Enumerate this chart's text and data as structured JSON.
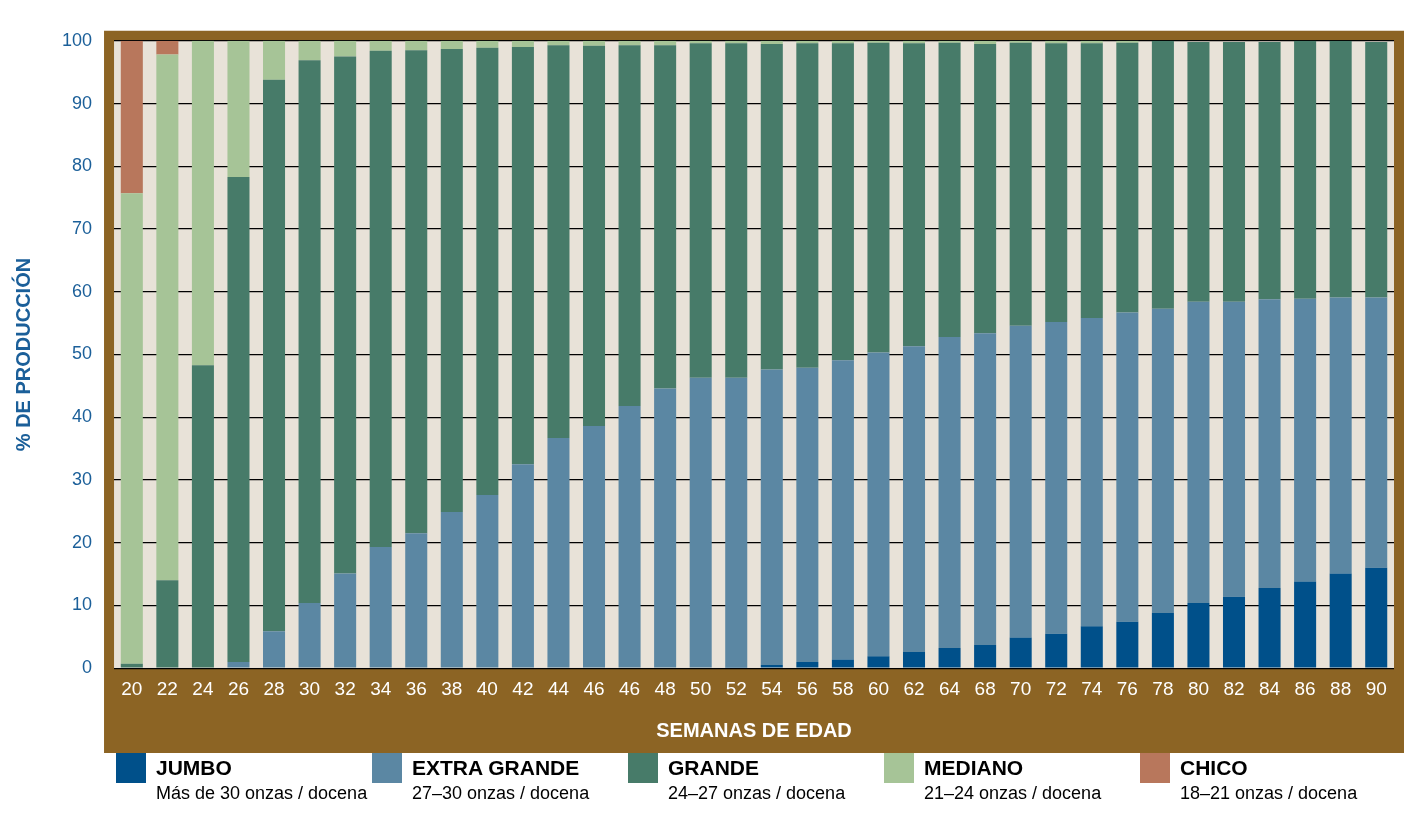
{
  "chart_data": {
    "type": "bar",
    "stacked": true,
    "xlabel": "SEMANAS DE EDAD",
    "ylabel": "% DE PRODUCCIÓN",
    "categories": [
      "20",
      "22",
      "24",
      "26",
      "28",
      "30",
      "32",
      "34",
      "36",
      "38",
      "40",
      "42",
      "44",
      "46",
      "46",
      "48",
      "50",
      "52",
      "54",
      "56",
      "58",
      "60",
      "62",
      "64",
      "68",
      "70",
      "72",
      "74",
      "76",
      "78",
      "80",
      "82",
      "84",
      "86",
      "88",
      "90"
    ],
    "series": [
      {
        "name": "JUMBO",
        "color": "#00508a",
        "values": [
          0,
          0,
          0,
          0,
          0,
          0,
          0,
          0,
          0,
          0,
          0,
          0,
          0,
          0,
          0,
          0,
          0,
          0.2,
          0.5,
          1.0,
          1.4,
          1.9,
          2.6,
          3.2,
          3.7,
          4.9,
          5.5,
          6.7,
          7.4,
          8.8,
          10.4,
          11.4,
          12.8,
          13.8,
          15.1,
          16.0
        ]
      },
      {
        "name": "EXTRA GRANDE",
        "color": "#5b87a3",
        "values": [
          0,
          0,
          0,
          1.0,
          5.9,
          10.4,
          15.1,
          19.3,
          21.5,
          24.9,
          27.6,
          32.5,
          36.7,
          38.6,
          41.8,
          44.6,
          46.3,
          46.1,
          47.1,
          46.9,
          47.7,
          48.4,
          48.7,
          49.6,
          49.7,
          49.7,
          49.7,
          49.1,
          49.3,
          48.5,
          48.0,
          47.0,
          46.0,
          45.1,
          44.0,
          43.1
        ]
      },
      {
        "name": "GRANDE",
        "color": "#477b69",
        "values": [
          0.7,
          14.0,
          48.3,
          77.3,
          87.9,
          86.5,
          82.4,
          79.1,
          77.0,
          73.8,
          71.3,
          66.5,
          62.6,
          60.6,
          57.5,
          54.7,
          53.3,
          53.3,
          51.9,
          51.7,
          50.5,
          49.4,
          48.3,
          46.9,
          46.1,
          45.1,
          44.4,
          43.8,
          43.0,
          42.7,
          41.4,
          41.4,
          41.0,
          41.1,
          40.9,
          40.7
        ]
      },
      {
        "name": "MEDIANO",
        "color": "#a6c497",
        "values": [
          75.0,
          83.8,
          51.7,
          21.7,
          6.2,
          3.1,
          2.5,
          1.6,
          1.5,
          1.3,
          1.1,
          1.0,
          0.7,
          0.8,
          0.7,
          0.7,
          0.4,
          0.4,
          0.5,
          0.4,
          0.4,
          0.3,
          0.4,
          0.3,
          0.5,
          0.3,
          0.4,
          0.4,
          0.3,
          0,
          null,
          null,
          null,
          0,
          0,
          null
        ]
      },
      {
        "name": "CHICO",
        "color": "#b8775c",
        "values": [
          24.3,
          2.2,
          0,
          0,
          0,
          0,
          0,
          0,
          0,
          0,
          0,
          0,
          0,
          0,
          0,
          0,
          0,
          0,
          0,
          0,
          0,
          0,
          0,
          0,
          0,
          0,
          0,
          0,
          0,
          0,
          0,
          0,
          0,
          0,
          0,
          0
        ]
      }
    ],
    "annotations": [
      "Más de 30 onzas / docena",
      "27–30 onzas / docena",
      "24–27 onzas / docena",
      "21–24 onzas / docena",
      "18–21 onzas / docena"
    ],
    "ylim": [
      0,
      100
    ],
    "yticks": [
      0,
      10,
      20,
      30,
      40,
      50,
      60,
      70,
      80,
      90,
      100
    ],
    "grid": "y",
    "legend": "bottom"
  }
}
